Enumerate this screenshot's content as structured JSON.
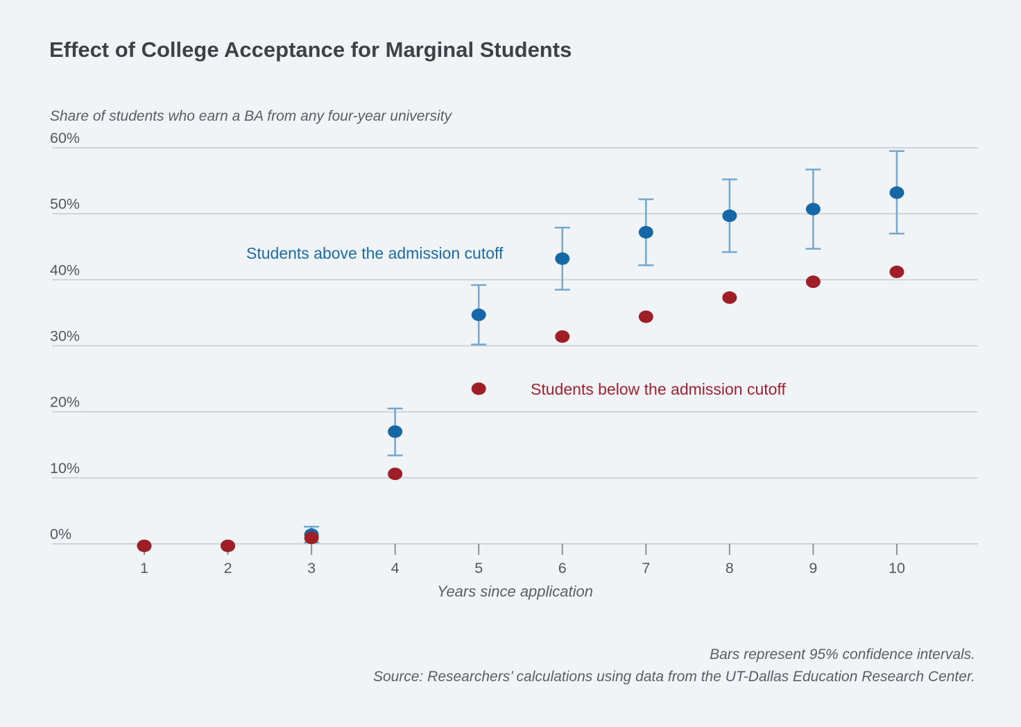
{
  "page": {
    "background": "#f0f4f7",
    "title": "Effect of College Acceptance for Marginal Students",
    "subtitle": "Share of students who earn a BA from any four-year university",
    "xaxis_label": "Years since application",
    "footer_line1": "Bars represent 95% confidence intervals.",
    "footer_line2": "Source: Researchers’ calculations using data from the UT-Dallas Education Research Center."
  },
  "chart_data": {
    "type": "scatter",
    "title": "Effect of College Acceptance for Marginal Students",
    "subtitle": "Share of students who earn a BA from any four-year university",
    "xlabel": "Years since application",
    "ylabel": "Share of students who earn a BA (%)",
    "x": [
      1,
      2,
      3,
      4,
      5,
      6,
      7,
      8,
      9,
      10
    ],
    "ylim": [
      -3,
      62
    ],
    "y_ticks": [
      0,
      10,
      20,
      30,
      40,
      50,
      60
    ],
    "y_tick_labels": [
      "0%",
      "10%",
      "20%",
      "30%",
      "40%",
      "50%",
      "60%"
    ],
    "x_tick_labels": [
      "1",
      "2",
      "3",
      "4",
      "5",
      "6",
      "7",
      "8",
      "9",
      "10"
    ],
    "grid": true,
    "legend_position": "in-plot annotations",
    "note": "Bars represent 95% confidence intervals.",
    "colors": {
      "above_dot": "#1667a5",
      "above_ci": "#74a7cf",
      "below_dot": "#9e2026",
      "gridline": "#c6cacd",
      "tick": "#8e9296",
      "tick_label": "#54585c"
    },
    "series": [
      {
        "name": "Students above the admission cutoff",
        "color": "#1667a5",
        "ci_color": "#74a7cf",
        "values": [
          -0.3,
          -0.3,
          1.4,
          17.0,
          34.7,
          43.2,
          47.2,
          49.7,
          50.7,
          53.2
        ],
        "ci_low": [
          null,
          null,
          0.2,
          13.4,
          30.2,
          38.5,
          42.2,
          44.2,
          44.7,
          47.0
        ],
        "ci_high": [
          null,
          null,
          2.6,
          20.5,
          39.2,
          47.9,
          52.2,
          55.2,
          56.7,
          59.5
        ]
      },
      {
        "name": "Students below the admission cutoff",
        "color": "#9e2026",
        "values": [
          -0.3,
          -0.3,
          0.9,
          10.6,
          23.5,
          31.4,
          34.4,
          37.3,
          39.7,
          41.2
        ],
        "ci_low": [
          null,
          null,
          null,
          null,
          null,
          null,
          null,
          null,
          null,
          null
        ],
        "ci_high": [
          null,
          null,
          null,
          null,
          null,
          null,
          null,
          null,
          null,
          null
        ]
      }
    ]
  }
}
